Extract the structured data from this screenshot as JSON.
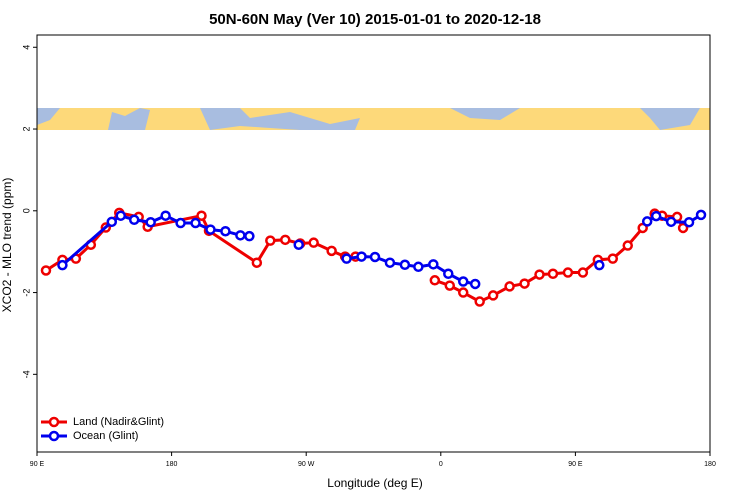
{
  "chart_data": {
    "type": "line",
    "title": "50N-60N May (Ver 10)   2015-01-01 to 2020-12-18",
    "x_label": "Longitude (deg E)",
    "y_label": "XCO2 - MLO trend (ppm)",
    "xlim": [
      90,
      540
    ],
    "ylim": [
      -5.9,
      4.3
    ],
    "xticks": [
      {
        "value": 90,
        "label": "90 E"
      },
      180,
      {
        "value": 270,
        "label": "90 W"
      },
      {
        "value": 360,
        "label": "0"
      },
      {
        "value": 450,
        "label": "90 E"
      },
      {
        "value": 540,
        "label": "180"
      }
    ],
    "yticks": [
      4,
      2,
      0,
      -2,
      -4
    ],
    "grid": false,
    "legend": "bottom-left",
    "series": [
      {
        "name": "Land (Nadir&Glint)",
        "color": "#ee0000",
        "x": [
          96,
          107,
          116,
          126,
          136,
          145,
          158,
          164,
          200,
          205,
          237,
          246,
          256,
          266,
          275,
          287,
          296,
          303,
          330,
          356,
          366,
          375,
          386,
          395,
          406,
          416,
          426,
          435,
          445,
          455,
          465,
          475,
          485,
          495,
          503,
          508,
          518,
          522
        ],
        "values": [
          -1.46,
          -1.2,
          -1.17,
          -0.83,
          -0.41,
          -0.05,
          -0.15,
          -0.39,
          -0.12,
          -0.49,
          -1.27,
          -0.73,
          -0.71,
          -0.8,
          -0.78,
          -0.98,
          -1.12,
          -1.12,
          null,
          -1.7,
          -1.83,
          -2.0,
          -2.22,
          -2.07,
          -1.85,
          -1.78,
          -1.56,
          -1.54,
          -1.51,
          -1.51,
          -1.2,
          -1.17,
          -0.85,
          -0.42,
          -0.07,
          -0.12,
          -0.15,
          -0.42
        ]
      },
      {
        "name": "Ocean (Glint)",
        "color": "#0000ee",
        "x": [
          107,
          140,
          146,
          155,
          166,
          176,
          186,
          196,
          206,
          216,
          226,
          232,
          250,
          265,
          280,
          297,
          307,
          316,
          326,
          336,
          345,
          355,
          365,
          375,
          383,
          420,
          466,
          480,
          498,
          504,
          514,
          526,
          534
        ],
        "values": [
          -1.33,
          -0.27,
          -0.12,
          -0.22,
          -0.28,
          -0.12,
          -0.3,
          -0.3,
          -0.46,
          -0.5,
          -0.6,
          -0.62,
          null,
          -0.83,
          null,
          -1.17,
          -1.12,
          -1.13,
          -1.27,
          -1.32,
          -1.37,
          -1.31,
          -1.54,
          -1.73,
          -1.79,
          null,
          -1.33,
          null,
          -0.26,
          -0.13,
          -0.27,
          -0.28,
          -0.1
        ]
      }
    ]
  }
}
